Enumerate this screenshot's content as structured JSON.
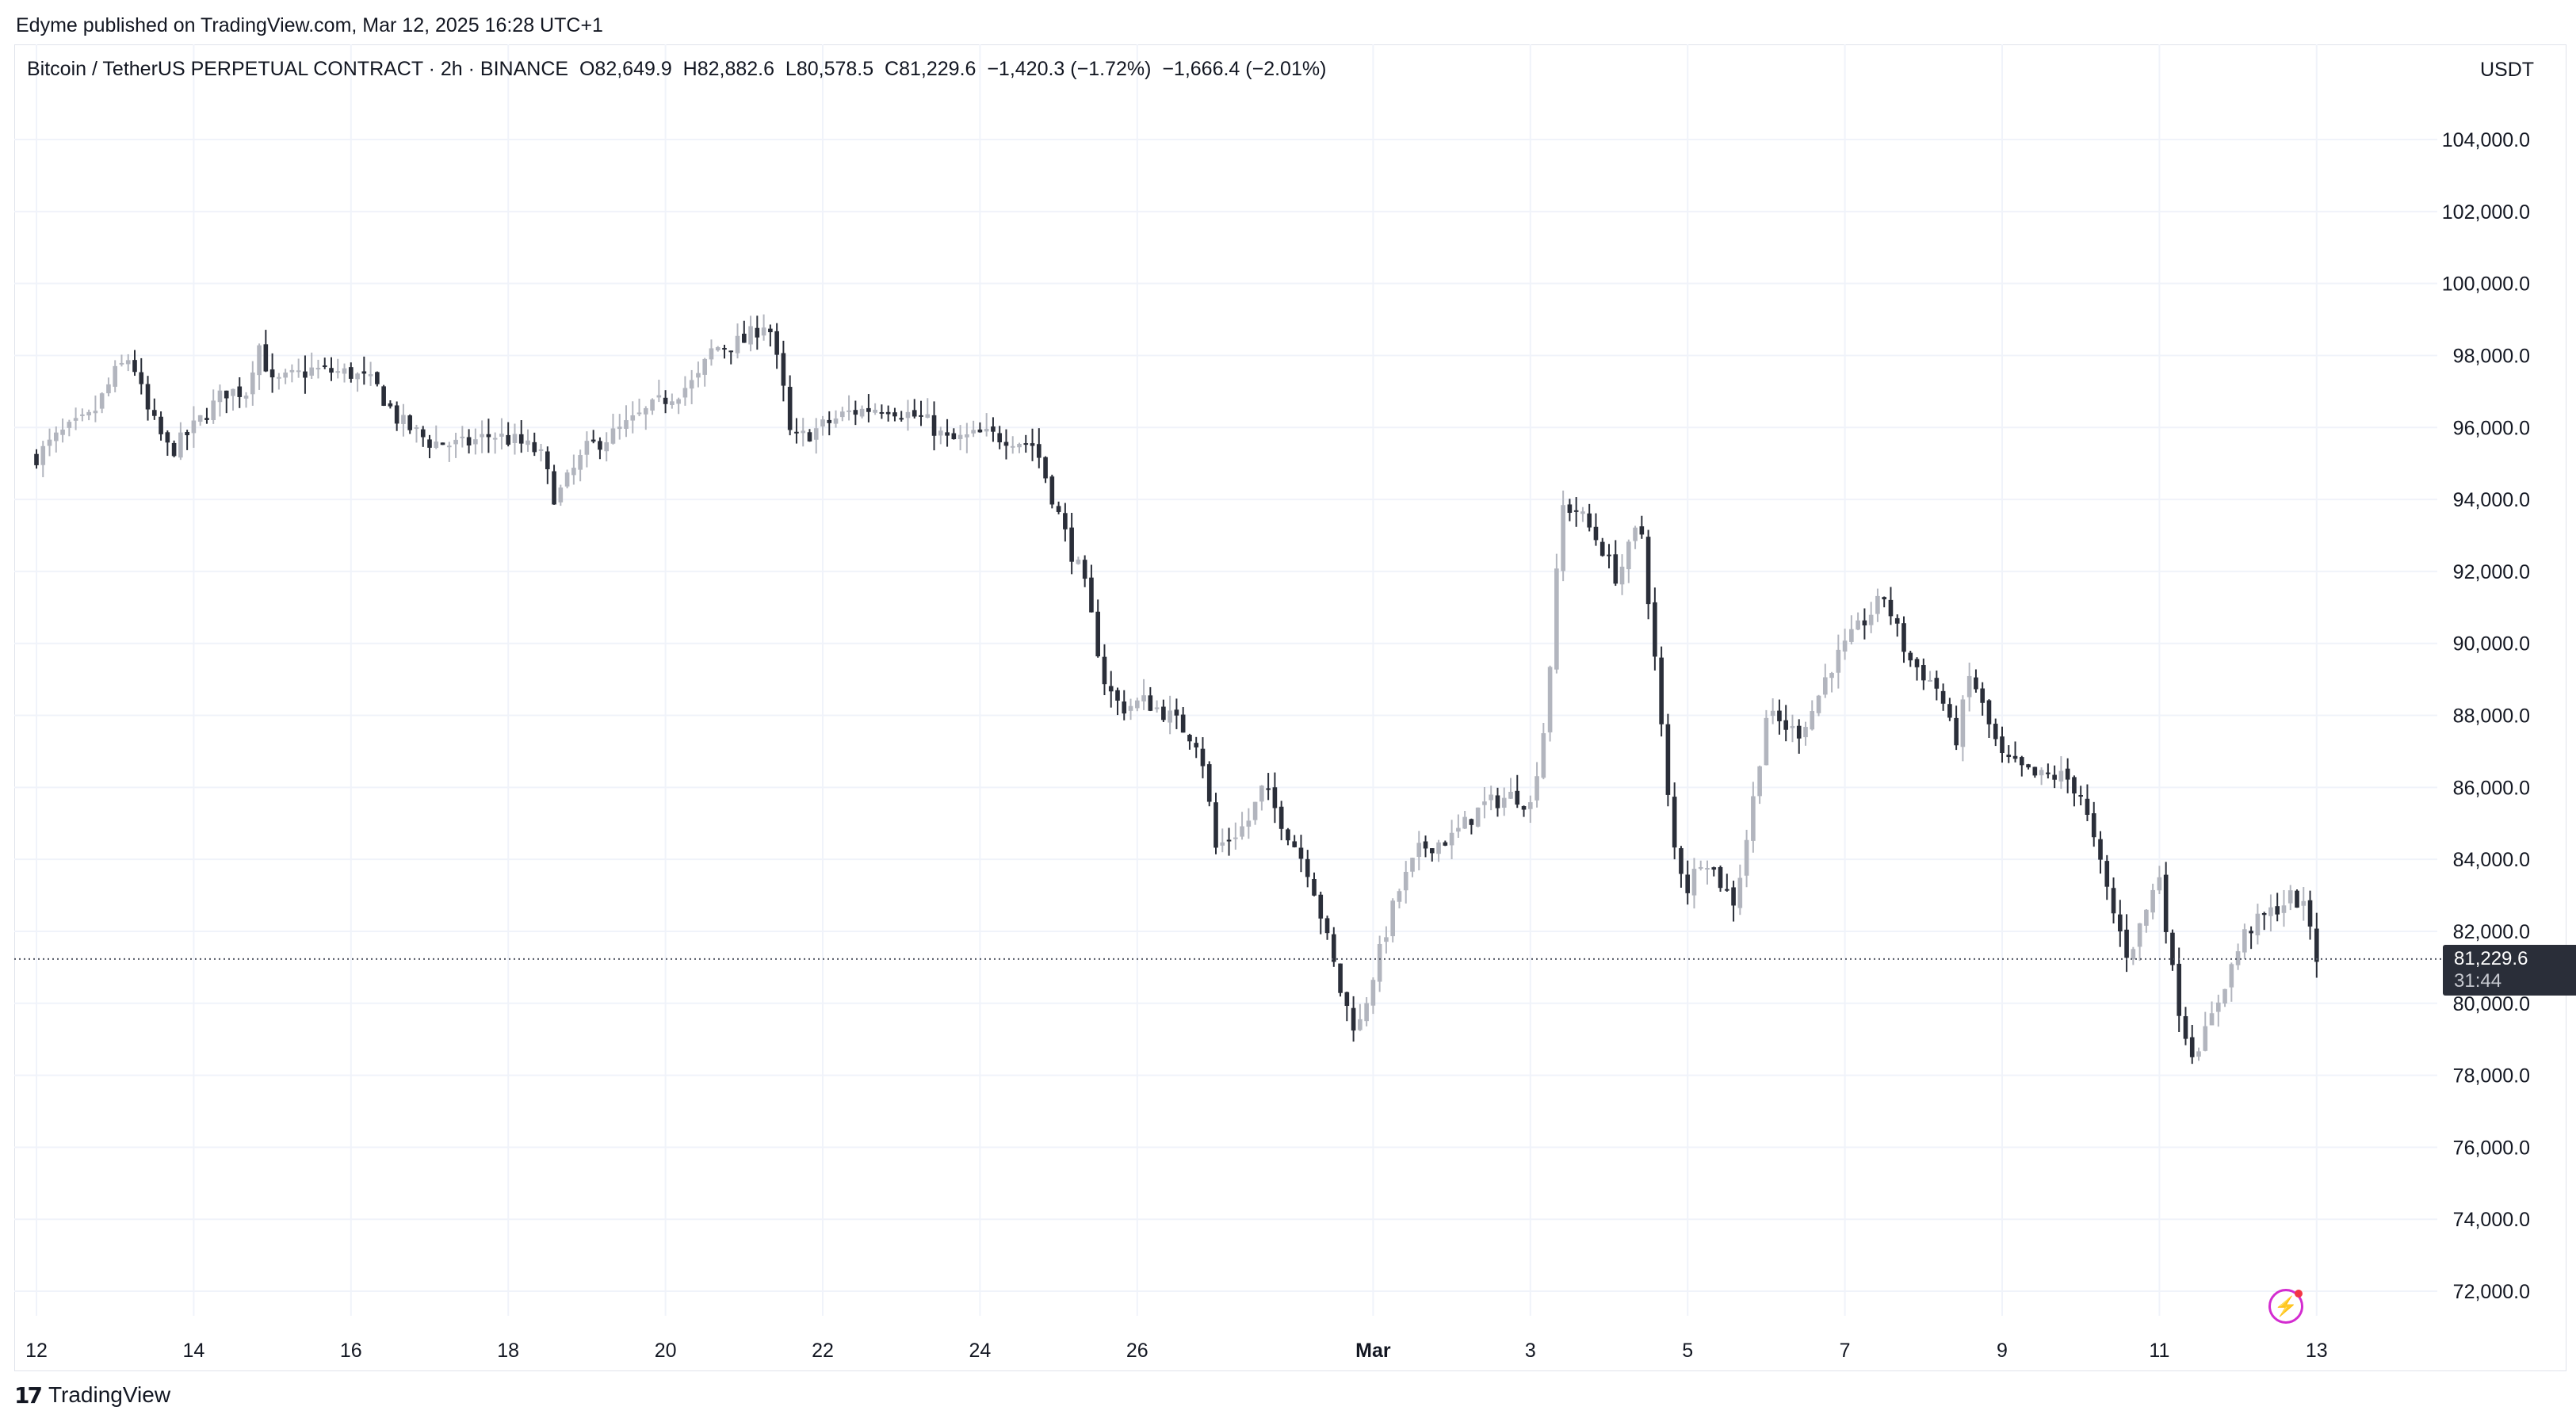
{
  "header": {
    "published": "Edyme published on TradingView.com, Mar 12, 2025 16:28 UTC+1",
    "symbol": "Bitcoin / TetherUS PERPETUAL CONTRACT · 2h · BINANCE",
    "open": "O82,649.9",
    "high": "H82,882.6",
    "low": "L80,578.5",
    "close": "C81,229.6",
    "change": "−1,420.3 (−1.72%)",
    "change2": "−1,666.4 (−2.01%)"
  },
  "currency": "USDT",
  "last_price": {
    "value": "81,229.6",
    "countdown": "31:44"
  },
  "footer": {
    "brand": "TradingView",
    "logo_mark": "17"
  },
  "colors": {
    "down": "#2a2e39",
    "up": "#b2b5be",
    "grid": "#f0f3fa",
    "last_line": "#555a66"
  },
  "icons": {
    "lightning": "lightning-icon"
  },
  "chart_data": {
    "type": "candlestick",
    "interval": "2h",
    "ylim": [
      71000,
      105000
    ],
    "y_ticks": [
      "72,000.0",
      "74,000.0",
      "76,000.0",
      "78,000.0",
      "80,000.0",
      "82,000.0",
      "84,000.0",
      "86,000.0",
      "88,000.0",
      "90,000.0",
      "92,000.0",
      "94,000.0",
      "96,000.0",
      "98,000.0",
      "100,000.0",
      "102,000.0",
      "104,000.0"
    ],
    "y_tick_values": [
      72000,
      74000,
      76000,
      78000,
      80000,
      82000,
      84000,
      86000,
      88000,
      90000,
      92000,
      94000,
      96000,
      98000,
      100000,
      102000,
      104000
    ],
    "x_ticks": [
      "12",
      "14",
      "16",
      "18",
      "20",
      "22",
      "24",
      "26",
      "Mar",
      "3",
      "5",
      "7",
      "9",
      "11",
      "13"
    ],
    "x_tick_days": [
      0,
      2,
      4,
      6,
      8,
      10,
      12,
      14,
      17,
      19,
      21,
      23,
      25,
      27,
      29
    ],
    "x_tick_bold": [
      "Mar"
    ],
    "last_price_value": 81229.6,
    "anchors": [
      [
        0,
        95200
      ],
      [
        0.3,
        95800
      ],
      [
        0.7,
        96300
      ],
      [
        1.0,
        97500
      ],
      [
        1.2,
        98000
      ],
      [
        1.4,
        96500
      ],
      [
        1.7,
        95300
      ],
      [
        2.0,
        96000
      ],
      [
        2.4,
        97000
      ],
      [
        2.7,
        97000
      ],
      [
        2.8,
        98500
      ],
      [
        3.0,
        97200
      ],
      [
        3.5,
        97600
      ],
      [
        4.0,
        97500
      ],
      [
        4.3,
        97200
      ],
      [
        4.6,
        96200
      ],
      [
        5.0,
        95600
      ],
      [
        5.4,
        95500
      ],
      [
        5.8,
        95800
      ],
      [
        6.1,
        95600
      ],
      [
        6.4,
        95300
      ],
      [
        6.6,
        94000
      ],
      [
        7.0,
        95400
      ],
      [
        7.4,
        95900
      ],
      [
        8.0,
        96800
      ],
      [
        8.4,
        97300
      ],
      [
        8.6,
        98200
      ],
      [
        9.0,
        98400
      ],
      [
        9.3,
        99000
      ],
      [
        9.5,
        97000
      ],
      [
        9.6,
        95600
      ],
      [
        9.8,
        95800
      ],
      [
        10.3,
        96400
      ],
      [
        10.8,
        96600
      ],
      [
        11.3,
        96200
      ],
      [
        11.6,
        95600
      ],
      [
        12.0,
        95800
      ],
      [
        12.4,
        95700
      ],
      [
        12.7,
        95500
      ],
      [
        12.9,
        94200
      ],
      [
        13.2,
        92300
      ],
      [
        13.3,
        91900
      ],
      [
        13.6,
        88800
      ],
      [
        13.8,
        88200
      ],
      [
        14.1,
        88400
      ],
      [
        14.4,
        88000
      ],
      [
        14.8,
        87200
      ],
      [
        15.0,
        84300
      ],
      [
        15.4,
        85000
      ],
      [
        15.6,
        86000
      ],
      [
        15.8,
        85200
      ],
      [
        16.2,
        83600
      ],
      [
        16.6,
        80200
      ],
      [
        16.8,
        79200
      ],
      [
        17.0,
        80800
      ],
      [
        17.3,
        83000
      ],
      [
        17.6,
        84300
      ],
      [
        18.0,
        84600
      ],
      [
        18.4,
        85500
      ],
      [
        18.8,
        85800
      ],
      [
        19.0,
        85500
      ],
      [
        19.2,
        88000
      ],
      [
        19.4,
        93800
      ],
      [
        19.6,
        93700
      ],
      [
        19.9,
        92700
      ],
      [
        20.1,
        91800
      ],
      [
        20.4,
        93400
      ],
      [
        20.6,
        89200
      ],
      [
        20.8,
        84500
      ],
      [
        21.0,
        83200
      ],
      [
        21.2,
        84200
      ],
      [
        21.4,
        83400
      ],
      [
        21.6,
        82800
      ],
      [
        21.8,
        85200
      ],
      [
        22.0,
        88000
      ],
      [
        22.4,
        87500
      ],
      [
        22.6,
        88200
      ],
      [
        22.8,
        89300
      ],
      [
        23.2,
        90500
      ],
      [
        23.5,
        91300
      ],
      [
        23.8,
        89600
      ],
      [
        24.2,
        88700
      ],
      [
        24.4,
        87200
      ],
      [
        24.6,
        89200
      ],
      [
        24.8,
        87900
      ],
      [
        25.0,
        86800
      ],
      [
        25.4,
        86300
      ],
      [
        25.8,
        86300
      ],
      [
        26.0,
        85800
      ],
      [
        26.2,
        84200
      ],
      [
        26.4,
        82600
      ],
      [
        26.6,
        81300
      ],
      [
        26.8,
        82400
      ],
      [
        27.0,
        83600
      ],
      [
        27.2,
        80300
      ],
      [
        27.4,
        78600
      ],
      [
        27.6,
        79200
      ],
      [
        27.8,
        80400
      ],
      [
        28.1,
        82000
      ],
      [
        28.4,
        82500
      ],
      [
        28.7,
        83000
      ],
      [
        28.9,
        82400
      ],
      [
        29.0,
        81300
      ]
    ]
  }
}
